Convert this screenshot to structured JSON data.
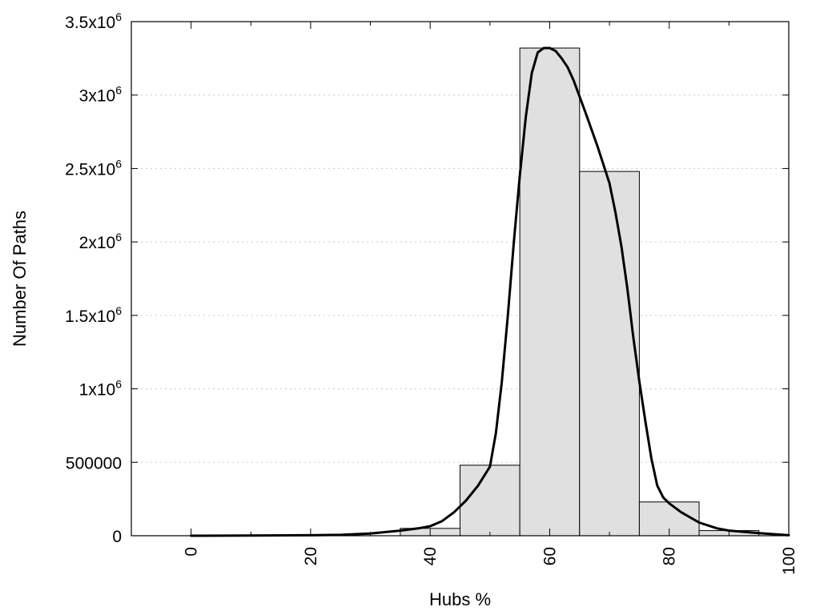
{
  "chart_data": {
    "type": "bar",
    "title": "",
    "xlabel": "Hubs %",
    "ylabel": "Number Of Paths",
    "xlim": [
      -10,
      100
    ],
    "ylim": [
      0,
      3500000
    ],
    "grid": true,
    "colors": {
      "bar_fill": "#e0e0e0",
      "bar_stroke": "#000000",
      "curve": "#000000",
      "grid": "#c8c8c8"
    },
    "x_ticks": [
      {
        "value": 0,
        "label": "0"
      },
      {
        "value": 20,
        "label": "20"
      },
      {
        "value": 40,
        "label": "40"
      },
      {
        "value": 60,
        "label": "60"
      },
      {
        "value": 80,
        "label": "80"
      },
      {
        "value": 100,
        "label": "100"
      }
    ],
    "x_minor_ticks": [
      10,
      30,
      50,
      70,
      90
    ],
    "y_ticks": [
      {
        "value": 0,
        "base": "0",
        "exp": ""
      },
      {
        "value": 500000,
        "base": "500000",
        "exp": ""
      },
      {
        "value": 1000000,
        "base": "1x10",
        "exp": "6"
      },
      {
        "value": 1500000,
        "base": "1.5x10",
        "exp": "6"
      },
      {
        "value": 2000000,
        "base": "2x10",
        "exp": "6"
      },
      {
        "value": 2500000,
        "base": "2.5x10",
        "exp": "6"
      },
      {
        "value": 3000000,
        "base": "3x10",
        "exp": "6"
      },
      {
        "value": 3500000,
        "base": "3.5x10",
        "exp": "6"
      }
    ],
    "bars": [
      {
        "x0": 35,
        "x1": 45,
        "value": 50000
      },
      {
        "x0": 45,
        "x1": 55,
        "value": 480000
      },
      {
        "x0": 55,
        "x1": 65,
        "value": 3320000
      },
      {
        "x0": 65,
        "x1": 75,
        "value": 2480000
      },
      {
        "x0": 75,
        "x1": 85,
        "value": 230000
      },
      {
        "x0": 85,
        "x1": 95,
        "value": 35000
      }
    ],
    "curve": {
      "x": [
        0,
        10,
        20,
        25,
        30,
        35,
        38,
        40,
        42,
        44,
        46,
        48,
        50,
        51,
        52,
        53,
        54,
        55,
        56,
        57,
        58,
        59,
        60,
        61,
        62,
        63,
        64,
        66,
        68,
        70,
        71,
        72,
        73,
        74,
        75,
        76,
        77,
        78,
        79,
        80,
        82,
        85,
        88,
        90,
        95,
        100
      ],
      "y": [
        0,
        1000,
        3000,
        6000,
        15000,
        35000,
        50000,
        65000,
        100000,
        160000,
        240000,
        340000,
        470000,
        700000,
        1050000,
        1500000,
        2000000,
        2450000,
        2850000,
        3150000,
        3290000,
        3320000,
        3320000,
        3300000,
        3250000,
        3190000,
        3100000,
        2880000,
        2650000,
        2400000,
        2200000,
        1970000,
        1680000,
        1350000,
        1050000,
        780000,
        530000,
        340000,
        260000,
        220000,
        160000,
        90000,
        50000,
        35000,
        18000,
        3000
      ]
    }
  }
}
